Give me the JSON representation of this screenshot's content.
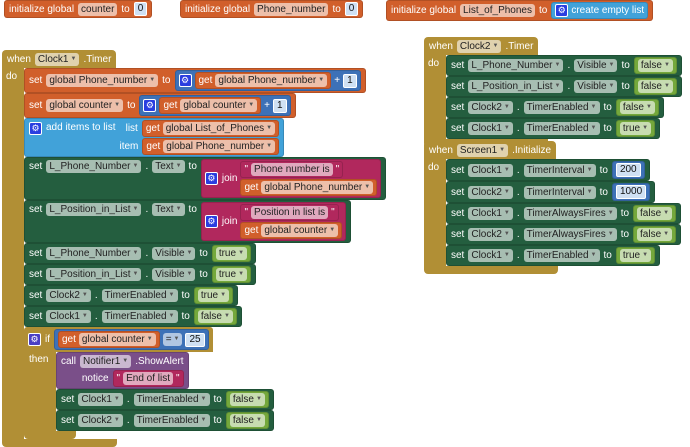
{
  "colors": {
    "variables": "#d15f2b",
    "math": "#3d71b7",
    "components": "#245e3f",
    "logic": "#74a83c",
    "lists": "#41a2d9",
    "text": "#b1285d",
    "control": "#b18f35",
    "notifier": "#7a4f89"
  },
  "kw": {
    "init": "initialize global",
    "when": "when",
    "do": "do",
    "set": "set",
    "to": "to",
    "get": "get",
    "plus": "+",
    "join": "join",
    "dot": ".",
    "if": "if",
    "then": "then",
    "call": "call",
    "list": "list",
    "item": "item",
    "notice": "notice",
    "add_items": "add items to list",
    "create_list": "create empty list",
    "quote": "\""
  },
  "globals": [
    {
      "name": "counter",
      "value": "0"
    },
    {
      "name": "Phone_number",
      "value": "0"
    },
    {
      "name": "List_of_Phones"
    }
  ],
  "clock1": {
    "component": "Clock1",
    "event": ".Timer",
    "r0": {
      "var": "global Phone_number",
      "get": "global Phone_number",
      "num": "1"
    },
    "r1": {
      "var": "global counter",
      "get": "global counter",
      "num": "1"
    },
    "r2": {
      "list": "global List_of_Phones",
      "item": "global Phone_number"
    },
    "r3": {
      "comp": "L_Phone_Number",
      "prop": "Text",
      "str": "Phone number is",
      "get": "global Phone_number"
    },
    "r4": {
      "comp": "L_Position_in_List",
      "prop": "Text",
      "str": "Position in list is",
      "get": "global counter"
    },
    "r5": {
      "comp": "L_Phone_Number",
      "prop": "Visible",
      "val": "true"
    },
    "r6": {
      "comp": "L_Position_in_List",
      "prop": "Visible",
      "val": "true"
    },
    "r7": {
      "comp": "Clock2",
      "prop": "TimerEnabled",
      "val": "true"
    },
    "r8": {
      "comp": "Clock1",
      "prop": "TimerEnabled",
      "val": "false"
    },
    "cond": {
      "get": "global counter",
      "op": "=",
      "num": "25"
    },
    "alert": {
      "comp": "Notifier1",
      "method": ".ShowAlert",
      "str": "End of list"
    },
    "t1": {
      "comp": "Clock1",
      "prop": "TimerEnabled",
      "val": "false"
    },
    "t2": {
      "comp": "Clock2",
      "prop": "TimerEnabled",
      "val": "false"
    }
  },
  "clock2": {
    "component": "Clock2",
    "event": ".Timer",
    "rows": [
      {
        "comp": "L_Phone_Number",
        "prop": "Visible",
        "val": "false"
      },
      {
        "comp": "L_Position_in_List",
        "prop": "Visible",
        "val": "false"
      },
      {
        "comp": "Clock2",
        "prop": "TimerEnabled",
        "val": "false"
      },
      {
        "comp": "Clock1",
        "prop": "TimerEnabled",
        "val": "true"
      }
    ]
  },
  "screen1": {
    "component": "Screen1",
    "event": ".Initialize",
    "rows": [
      {
        "comp": "Clock1",
        "prop": "TimerInterval",
        "val": "200"
      },
      {
        "comp": "Clock2",
        "prop": "TimerInterval",
        "val": "1000"
      },
      {
        "comp": "Clock1",
        "prop": "TimerAlwaysFires",
        "val": "false"
      },
      {
        "comp": "Clock2",
        "prop": "TimerAlwaysFires",
        "val": "false"
      },
      {
        "comp": "Clock1",
        "prop": "TimerEnabled",
        "val": "true"
      }
    ]
  }
}
